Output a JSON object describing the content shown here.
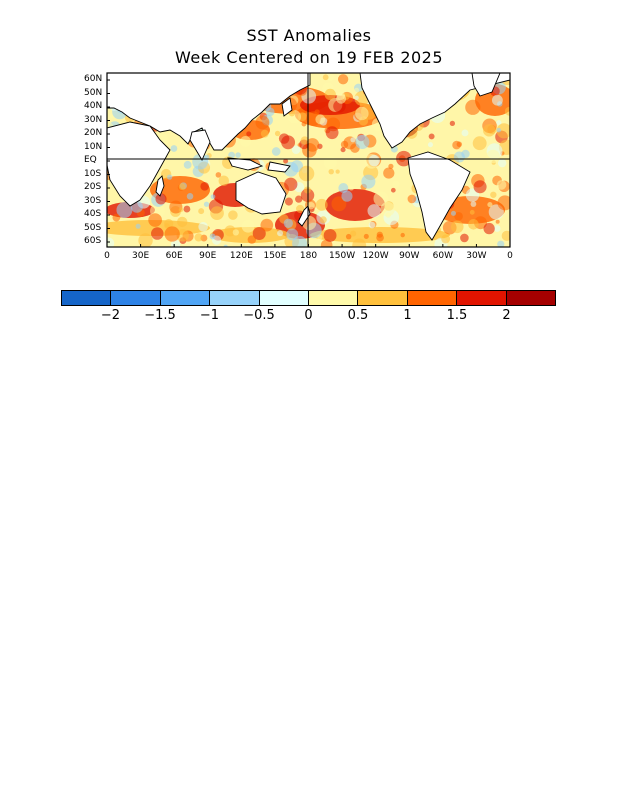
{
  "title": "SST Anomalies",
  "subtitle": "Week Centered on 19 FEB 2025",
  "lat_labels": [
    "60N",
    "50N",
    "40N",
    "30N",
    "20N",
    "10N",
    "EQ",
    "10S",
    "20S",
    "30S",
    "40S",
    "50S",
    "60S"
  ],
  "lon_labels": [
    "0",
    "30E",
    "60E",
    "90E",
    "120E",
    "150E",
    "180",
    "150W",
    "120W",
    "90W",
    "60W",
    "30W",
    "0"
  ],
  "colorbar": {
    "colors": [
      "#1565c8",
      "#2d82e6",
      "#50a5f5",
      "#96d2fa",
      "#e1ffff",
      "#fffaaa",
      "#ffc03c",
      "#ff6400",
      "#e11400",
      "#a50000"
    ],
    "tick_labels": [
      "−2",
      "−1.5",
      "−1",
      "−0.5",
      "0",
      "0.5",
      "1",
      "1.5",
      "2"
    ]
  }
}
